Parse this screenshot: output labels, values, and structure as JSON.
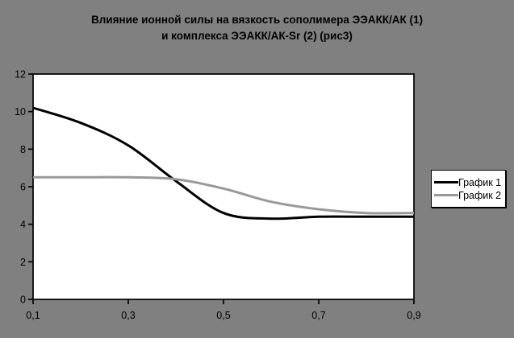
{
  "title": {
    "line1": "Влияние ионной силы на вязкость сополимера ЭЭАКК/АК (1)",
    "line2": "и комплекса ЭЭАКК/АК-Sr (2) (рис3)"
  },
  "legend": {
    "items": [
      {
        "label": "График 1",
        "color": "#000000"
      },
      {
        "label": "График 2",
        "color": "#999999"
      }
    ]
  },
  "colors": {
    "page_background": "#808080",
    "plot_background": "#ffffff",
    "axis": "#000000",
    "title_text": "#000000"
  },
  "chart_data": {
    "type": "line",
    "title": "Влияние ионной силы на вязкость сополимера ЭЭАКК/АК (1) и комплекса ЭЭАКК/АК-Sr (2) (рис3)",
    "xlabel": "",
    "ylabel": "",
    "x": [
      0.1,
      0.2,
      0.3,
      0.4,
      0.5,
      0.6,
      0.7,
      0.8,
      0.9
    ],
    "series": [
      {
        "name": "График 1",
        "color": "#000000",
        "values": [
          10.2,
          9.4,
          8.2,
          6.3,
          4.6,
          4.3,
          4.4,
          4.4,
          4.4
        ]
      },
      {
        "name": "График 2",
        "color": "#999999",
        "values": [
          6.5,
          6.5,
          6.5,
          6.4,
          5.9,
          5.2,
          4.8,
          4.6,
          4.6
        ]
      }
    ],
    "xlim": [
      0.1,
      0.9
    ],
    "ylim": [
      0,
      12
    ],
    "x_ticks": [
      0.1,
      0.3,
      0.5,
      0.7,
      0.9
    ],
    "x_tick_labels": [
      "0,1",
      "0,3",
      "0,5",
      "0,7",
      "0,9"
    ],
    "y_ticks": [
      0,
      2,
      4,
      6,
      8,
      10,
      12
    ],
    "y_tick_labels": [
      "0",
      "2",
      "4",
      "6",
      "8",
      "10",
      "12"
    ],
    "grid": false,
    "smoothed": true,
    "legend_position": "right"
  }
}
